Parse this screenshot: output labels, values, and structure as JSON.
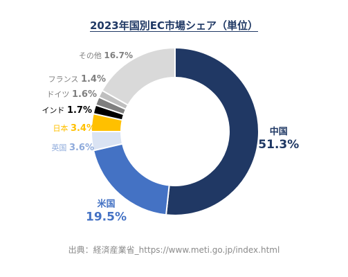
{
  "chart_data": {
    "type": "pie",
    "style": "donut",
    "title": "2023年国別EC市場シェア（単位）",
    "unit": "%",
    "categories": [
      "中国",
      "米国",
      "英国",
      "日本",
      "インド",
      "ドイツ",
      "フランス",
      "その他"
    ],
    "values": [
      51.3,
      19.5,
      3.6,
      3.4,
      1.7,
      1.6,
      1.4,
      16.7
    ],
    "value_labels": [
      "51.3%",
      "19.5%",
      "3.6%",
      "3.4%",
      "1.7%",
      "1.6%",
      "1.4%",
      "16.7%"
    ],
    "colors": [
      "#203864",
      "#4472c4",
      "#dae3f3",
      "#ffc000",
      "#000000",
      "#7f7f7f",
      "#bfbfbf",
      "#d9d9d9"
    ],
    "label_colors": [
      "#1f3864",
      "#4472c4",
      "#8eaadb",
      "#ffc000",
      "#000000",
      "#7f7f7f",
      "#7f7f7f",
      "#7f7f7f"
    ],
    "start_angle": "12 o'clock",
    "direction": "clockwise",
    "legend": "none (inline labels)"
  },
  "source": "出典：経済産業省_https://www.meti.go.jp/index.html"
}
